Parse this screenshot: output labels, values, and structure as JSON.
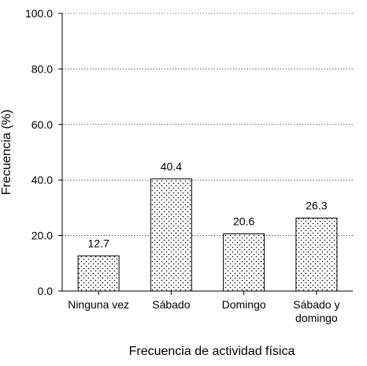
{
  "chart_data": {
    "type": "bar",
    "categories": [
      "Ninguna vez",
      "Sábado",
      "Domingo",
      "Sábado y domingo"
    ],
    "category_lines": [
      [
        "Ninguna vez"
      ],
      [
        "Sábado"
      ],
      [
        "Domingo"
      ],
      [
        "Sábado y",
        "domingo"
      ]
    ],
    "values": [
      12.7,
      40.4,
      20.6,
      26.3
    ],
    "value_labels": [
      "12.7",
      "40.4",
      "20.6",
      "26.3"
    ],
    "xlabel": "Frecuencia de actividad física",
    "ylabel": "Frecuencia (%)",
    "ylim": [
      0,
      100
    ],
    "yticks": [
      0,
      20,
      40,
      60,
      80,
      100
    ],
    "ytick_labels": [
      "0.0",
      "20.0",
      "40.0",
      "60.0",
      "80.0",
      "100.0"
    ],
    "grid": "horizontal dotted",
    "bar_fill": "dotted pattern",
    "colors": {
      "bar_edge": "#000000",
      "bar_dots": "#000000",
      "grid": "#000000",
      "background": "#ffffff"
    }
  }
}
